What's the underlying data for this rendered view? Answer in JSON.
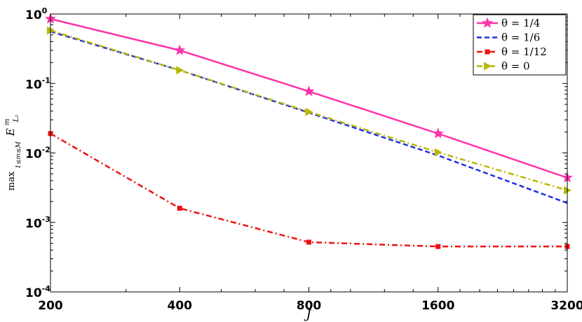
{
  "chart_data": {
    "type": "line",
    "x_scale": "log",
    "y_scale": "log",
    "xlabel": "J",
    "ylabel": "max E^m_{L_2}",
    "ylabel_sub": "1≤m≤M",
    "xlim": [
      200,
      3200
    ],
    "ylim": [
      0.0001,
      1
    ],
    "x": [
      200,
      400,
      800,
      1600,
      3200
    ],
    "x_tick_labels": [
      "200",
      "400",
      "800",
      "1600",
      "3200"
    ],
    "y_ticks": [
      {
        "value": 1,
        "mantissa": "10",
        "exp": "0"
      },
      {
        "value": 0.1,
        "mantissa": "10",
        "exp": "-1"
      },
      {
        "value": 0.01,
        "mantissa": "10",
        "exp": "-2"
      },
      {
        "value": 0.001,
        "mantissa": "10",
        "exp": "-3"
      },
      {
        "value": 0.0001,
        "mantissa": "10",
        "exp": "-4"
      }
    ],
    "grid": false,
    "legend_position": "top-right",
    "series": [
      {
        "name": "θ = 1/4",
        "values": [
          0.85,
          0.3,
          0.077,
          0.019,
          0.0044
        ],
        "color": "#ff33aa",
        "dash": "solid",
        "marker": "star"
      },
      {
        "name": "θ = 1/6",
        "values": [
          0.56,
          0.155,
          0.038,
          0.0092,
          0.0019
        ],
        "color": "#1f2fe6",
        "dash": "dashed",
        "marker": "none"
      },
      {
        "name": "θ = 1/12",
        "values": [
          0.019,
          0.0016,
          0.00052,
          0.00045,
          0.00045
        ],
        "color": "#ee1111",
        "dash": "dashdot",
        "marker": "square"
      },
      {
        "name": "θ = 0",
        "values": [
          0.58,
          0.155,
          0.039,
          0.0102,
          0.0029
        ],
        "color": "#b8b80a",
        "dash": "dashdot",
        "marker": "triangle-right"
      }
    ]
  }
}
